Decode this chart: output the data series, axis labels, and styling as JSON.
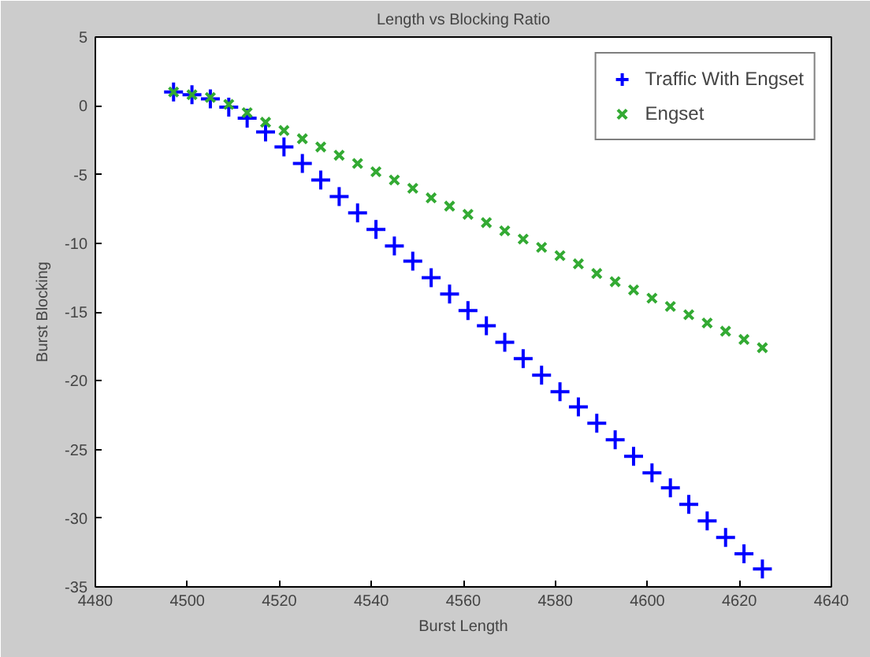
{
  "chart_data": {
    "type": "scatter",
    "title": "Length vs Blocking Ratio",
    "xlabel": "Burst Length",
    "ylabel": "Burst Blocking",
    "x": [
      4497,
      4501,
      4505,
      4509,
      4513,
      4517,
      4521,
      4525,
      4529,
      4533,
      4537,
      4541,
      4545,
      4549,
      4553,
      4557,
      4561,
      4565,
      4569,
      4573,
      4577,
      4581,
      4585,
      4589,
      4593,
      4597,
      4601,
      4605,
      4609,
      4613,
      4617,
      4621,
      4625
    ],
    "series": [
      {
        "name": "Traffic With Engset",
        "color": "#0000ff",
        "marker": "cross",
        "values": [
          1.0,
          0.8,
          0.5,
          -0.1,
          -0.9,
          -1.9,
          -3.0,
          -4.2,
          -5.4,
          -6.6,
          -7.8,
          -9.0,
          -10.2,
          -11.3,
          -12.5,
          -13.7,
          -14.9,
          -16.0,
          -17.2,
          -18.4,
          -19.6,
          -20.8,
          -21.9,
          -23.1,
          -24.3,
          -25.5,
          -26.7,
          -27.8,
          -29.0,
          -30.2,
          -31.4,
          -32.6,
          -33.7
        ]
      },
      {
        "name": "Engset",
        "color": "#33aa33",
        "marker": "x",
        "values": [
          1.0,
          0.8,
          0.6,
          0.1,
          -0.5,
          -1.2,
          -1.8,
          -2.4,
          -3.0,
          -3.6,
          -4.2,
          -4.8,
          -5.4,
          -6.0,
          -6.7,
          -7.3,
          -7.9,
          -8.5,
          -9.1,
          -9.7,
          -10.3,
          -10.9,
          -11.5,
          -12.2,
          -12.8,
          -13.4,
          -14.0,
          -14.6,
          -15.2,
          -15.8,
          -16.4,
          -17.0,
          -17.6
        ]
      }
    ],
    "xlim": [
      4480,
      4640
    ],
    "xticks": [
      4480,
      4500,
      4520,
      4540,
      4560,
      4580,
      4600,
      4620,
      4640
    ],
    "ylim": [
      -35,
      5
    ],
    "yticks": [
      -35,
      -30,
      -25,
      -20,
      -15,
      -10,
      -5,
      0,
      5
    ],
    "grid": false,
    "legend": "top right"
  }
}
